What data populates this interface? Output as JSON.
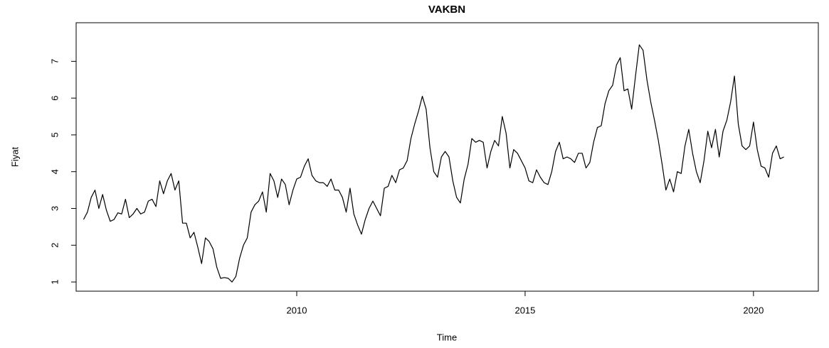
{
  "chart_data": {
    "type": "line",
    "title": "VAKBN",
    "x_label": "Time",
    "y_label": "Fiyat",
    "color": "#000000",
    "x": [
      2005.333,
      2005.417,
      2005.5,
      2005.583,
      2005.667,
      2005.75,
      2005.833,
      2005.917,
      2006.0,
      2006.083,
      2006.167,
      2006.25,
      2006.333,
      2006.417,
      2006.5,
      2006.583,
      2006.667,
      2006.75,
      2006.833,
      2006.917,
      2007.0,
      2007.083,
      2007.167,
      2007.25,
      2007.333,
      2007.417,
      2007.5,
      2007.583,
      2007.667,
      2007.75,
      2007.833,
      2007.917,
      2008.0,
      2008.083,
      2008.167,
      2008.25,
      2008.333,
      2008.417,
      2008.5,
      2008.583,
      2008.667,
      2008.75,
      2008.833,
      2008.917,
      2009.0,
      2009.083,
      2009.167,
      2009.25,
      2009.333,
      2009.417,
      2009.5,
      2009.583,
      2009.667,
      2009.75,
      2009.833,
      2009.917,
      2010.0,
      2010.083,
      2010.167,
      2010.25,
      2010.333,
      2010.417,
      2010.5,
      2010.583,
      2010.667,
      2010.75,
      2010.833,
      2010.917,
      2011.0,
      2011.083,
      2011.167,
      2011.25,
      2011.333,
      2011.417,
      2011.5,
      2011.583,
      2011.667,
      2011.75,
      2011.833,
      2011.917,
      2012.0,
      2012.083,
      2012.167,
      2012.25,
      2012.333,
      2012.417,
      2012.5,
      2012.583,
      2012.667,
      2012.75,
      2012.833,
      2012.917,
      2013.0,
      2013.083,
      2013.167,
      2013.25,
      2013.333,
      2013.417,
      2013.5,
      2013.583,
      2013.667,
      2013.75,
      2013.833,
      2013.917,
      2014.0,
      2014.083,
      2014.167,
      2014.25,
      2014.333,
      2014.417,
      2014.5,
      2014.583,
      2014.667,
      2014.75,
      2014.833,
      2014.917,
      2015.0,
      2015.083,
      2015.167,
      2015.25,
      2015.333,
      2015.417,
      2015.5,
      2015.583,
      2015.667,
      2015.75,
      2015.833,
      2015.917,
      2016.0,
      2016.083,
      2016.167,
      2016.25,
      2016.333,
      2016.417,
      2016.5,
      2016.583,
      2016.667,
      2016.75,
      2016.833,
      2016.917,
      2017.0,
      2017.083,
      2017.167,
      2017.25,
      2017.333,
      2017.417,
      2017.5,
      2017.583,
      2017.667,
      2017.75,
      2017.833,
      2017.917,
      2018.0,
      2018.083,
      2018.167,
      2018.25,
      2018.333,
      2018.417,
      2018.5,
      2018.583,
      2018.667,
      2018.75,
      2018.833,
      2018.917,
      2019.0,
      2019.083,
      2019.167,
      2019.25,
      2019.333,
      2019.417,
      2019.5,
      2019.583,
      2019.667,
      2019.75,
      2019.833,
      2019.917,
      2020.0,
      2020.083,
      2020.167,
      2020.25,
      2020.333,
      2020.417,
      2020.5,
      2020.583,
      2020.667
    ],
    "values": [
      2.7,
      2.9,
      3.3,
      3.5,
      3.0,
      3.38,
      2.95,
      2.65,
      2.7,
      2.88,
      2.85,
      3.25,
      2.75,
      2.85,
      3.0,
      2.85,
      2.9,
      3.2,
      3.25,
      3.05,
      3.75,
      3.4,
      3.75,
      3.95,
      3.5,
      3.75,
      2.6,
      2.6,
      2.2,
      2.35,
      1.95,
      1.5,
      2.2,
      2.1,
      1.9,
      1.4,
      1.1,
      1.12,
      1.1,
      1.0,
      1.15,
      1.65,
      2.0,
      2.2,
      2.9,
      3.1,
      3.2,
      3.45,
      2.9,
      3.95,
      3.75,
      3.3,
      3.8,
      3.65,
      3.1,
      3.5,
      3.8,
      3.85,
      4.15,
      4.35,
      3.9,
      3.75,
      3.7,
      3.7,
      3.6,
      3.8,
      3.5,
      3.5,
      3.3,
      2.9,
      3.55,
      2.85,
      2.55,
      2.3,
      2.7,
      3.0,
      3.2,
      3.0,
      2.8,
      3.55,
      3.6,
      3.9,
      3.7,
      4.05,
      4.1,
      4.3,
      4.9,
      5.3,
      5.65,
      6.05,
      5.7,
      4.65,
      4.0,
      3.85,
      4.4,
      4.55,
      4.4,
      3.75,
      3.3,
      3.15,
      3.8,
      4.2,
      4.9,
      4.8,
      4.85,
      4.8,
      4.1,
      4.55,
      4.85,
      4.7,
      5.5,
      5.05,
      4.1,
      4.6,
      4.5,
      4.3,
      4.1,
      3.75,
      3.7,
      4.05,
      3.85,
      3.7,
      3.65,
      4.0,
      4.55,
      4.8,
      4.35,
      4.4,
      4.35,
      4.25,
      4.5,
      4.5,
      4.1,
      4.25,
      4.8,
      5.2,
      5.25,
      5.85,
      6.2,
      6.35,
      6.9,
      7.1,
      6.2,
      6.25,
      5.7,
      6.6,
      7.45,
      7.3,
      6.5,
      5.9,
      5.4,
      4.85,
      4.2,
      3.5,
      3.8,
      3.45,
      4.0,
      3.95,
      4.7,
      5.15,
      4.5,
      4.0,
      3.7,
      4.3,
      5.1,
      4.65,
      5.15,
      4.4,
      5.1,
      5.4,
      5.9,
      6.6,
      5.3,
      4.7,
      4.6,
      4.7,
      5.35,
      4.6,
      4.15,
      4.1,
      3.85,
      4.5,
      4.7,
      4.35,
      4.4
    ],
    "xlim": [
      2005.17,
      2021.42
    ],
    "xticks": [
      2010,
      2015,
      2020
    ],
    "ylim": [
      0.75,
      8.05
    ],
    "yticks": [
      1,
      2,
      3,
      4,
      5,
      6,
      7
    ]
  }
}
